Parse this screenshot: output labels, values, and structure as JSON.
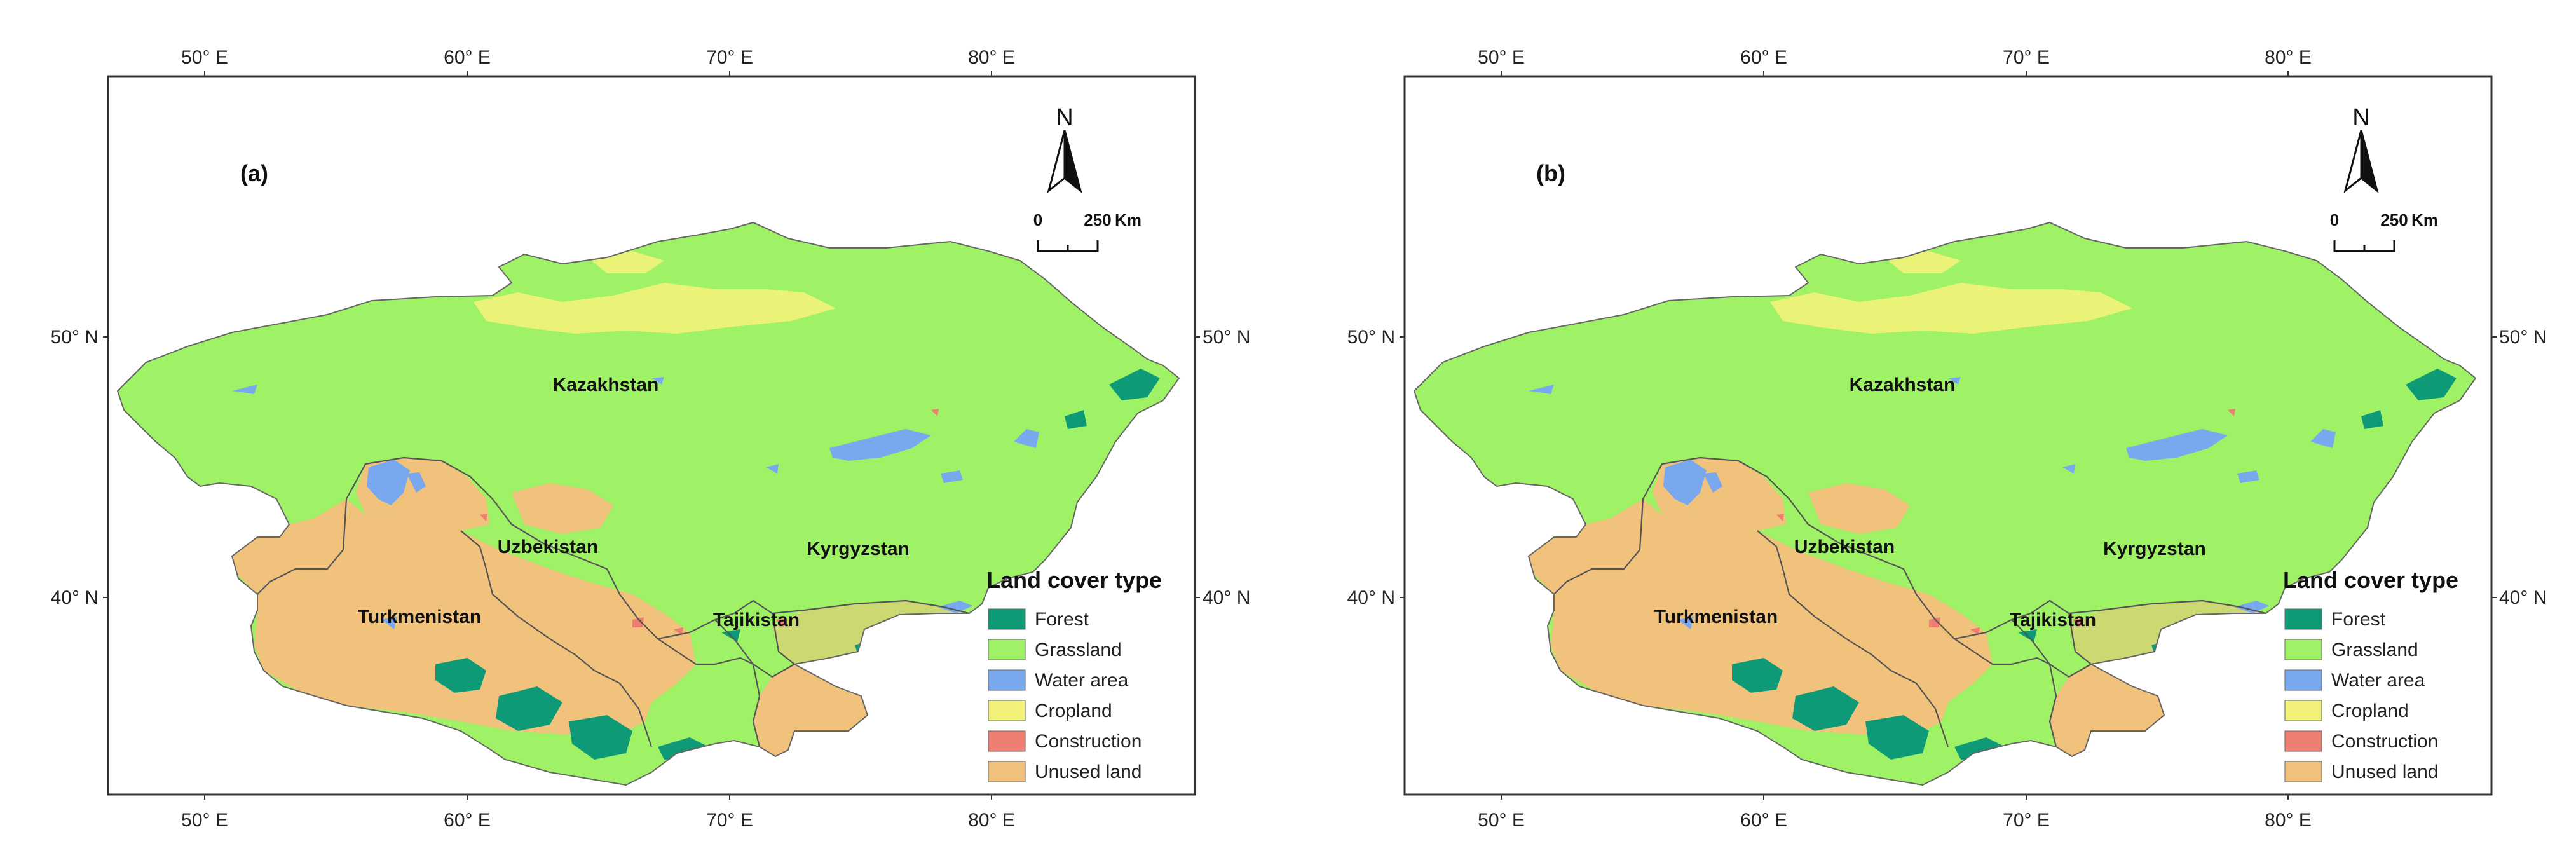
{
  "panels": [
    {
      "label": "(a)",
      "top_longitude_ticks": [
        "50° E",
        "60° E",
        "70° E",
        "80° E"
      ],
      "bottom_longitude_ticks": [
        "50° E",
        "60° E",
        "70° E",
        "80° E"
      ],
      "left_latitude_ticks": [
        "50° N",
        "40° N"
      ],
      "right_latitude_ticks": [
        "50° N",
        "40° N"
      ],
      "countries": [
        "Kazakhstan",
        "Uzbekistan",
        "Kyrgyzstan",
        "Turkmenistan",
        "Tajikistan"
      ],
      "north_arrow": {
        "label": "N"
      },
      "scale_bar": {
        "start": "0",
        "end": "250",
        "unit": "Km"
      },
      "legend": {
        "title": "Land cover type",
        "items": [
          {
            "label": "Forest",
            "color": "#0f9a77"
          },
          {
            "label": "Grassland",
            "color": "#9ff266"
          },
          {
            "label": "Water area",
            "color": "#7aa8ee"
          },
          {
            "label": "Cropland",
            "color": "#f2f27a"
          },
          {
            "label": "Construction",
            "color": "#ee7e72"
          },
          {
            "label": "Unused land",
            "color": "#f1c27c"
          }
        ]
      }
    },
    {
      "label": "(b)",
      "top_longitude_ticks": [
        "50° E",
        "60° E",
        "70° E",
        "80° E"
      ],
      "bottom_longitude_ticks": [
        "50° E",
        "60° E",
        "70° E",
        "80° E"
      ],
      "left_latitude_ticks": [
        "50° N",
        "40° N"
      ],
      "right_latitude_ticks": [
        "50° N",
        "40° N"
      ],
      "countries": [
        "Kazakhstan",
        "Uzbekistan",
        "Kyrgyzstan",
        "Turkmenistan",
        "Tajikistan"
      ],
      "north_arrow": {
        "label": "N"
      },
      "scale_bar": {
        "start": "0",
        "end": "250",
        "unit": "Km"
      },
      "legend": {
        "title": "Land cover type",
        "items": [
          {
            "label": "Forest",
            "color": "#0f9a77"
          },
          {
            "label": "Grassland",
            "color": "#9ff266"
          },
          {
            "label": "Water area",
            "color": "#7aa8ee"
          },
          {
            "label": "Cropland",
            "color": "#f2f27a"
          },
          {
            "label": "Construction",
            "color": "#ee7e72"
          },
          {
            "label": "Unused land",
            "color": "#f1c27c"
          }
        ]
      }
    }
  ]
}
